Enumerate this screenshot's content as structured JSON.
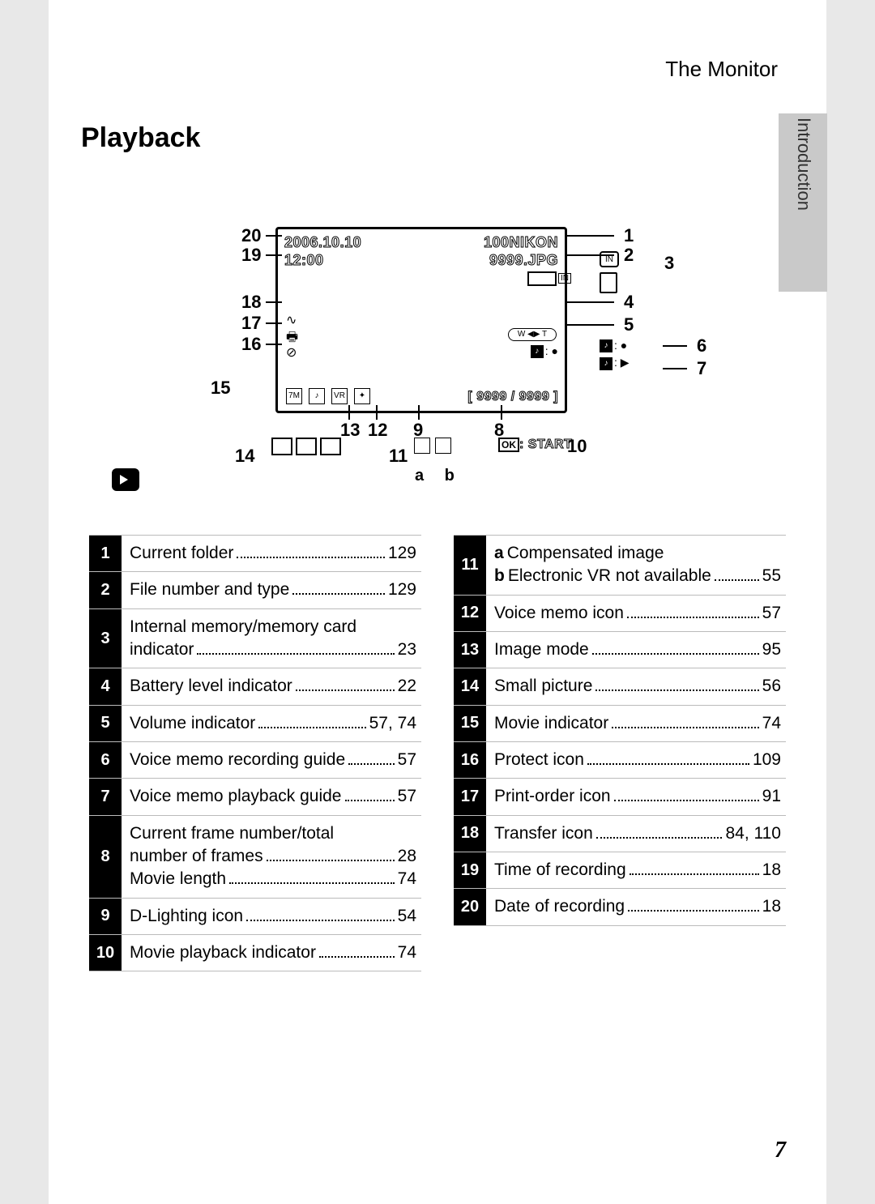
{
  "header": {
    "title": "The Monitor"
  },
  "section": {
    "title": "Playback"
  },
  "side_tab": {
    "label": "Introduction"
  },
  "page_number": "7",
  "screen": {
    "date": "2006.10.10",
    "time": "12:00",
    "folder": "100NIKON",
    "file": "9999.JPG",
    "volume_label": "W ◀▶ T",
    "frame": "[ 9999 / 9999 ]",
    "ok_start": ": START",
    "guide_rec": ": ●",
    "guide_play": ": ▶",
    "ab_label": "a  b"
  },
  "callouts": {
    "n1": "1",
    "n2": "2",
    "n3": "3",
    "n4": "4",
    "n5": "5",
    "n6": "6",
    "n7": "7",
    "n8": "8",
    "n9": "9",
    "n10": "10",
    "n11": "11",
    "n12": "12",
    "n13": "13",
    "n14": "14",
    "n15": "15",
    "n16": "16",
    "n17": "17",
    "n18": "18",
    "n19": "19",
    "n20": "20"
  },
  "legend_left": [
    {
      "num": "1",
      "lines": [
        {
          "label": "Current folder",
          "page": "129"
        }
      ]
    },
    {
      "num": "2",
      "lines": [
        {
          "label": "File number and type",
          "page": "129"
        }
      ]
    },
    {
      "num": "3",
      "lines": [
        {
          "label": "Internal memory/memory card"
        },
        {
          "label": "indicator",
          "page": "23"
        }
      ]
    },
    {
      "num": "4",
      "lines": [
        {
          "label": "Battery level indicator",
          "page": "22"
        }
      ]
    },
    {
      "num": "5",
      "lines": [
        {
          "label": "Volume indicator",
          "page": "57, 74"
        }
      ]
    },
    {
      "num": "6",
      "lines": [
        {
          "label": "Voice memo recording guide",
          "page": "57"
        }
      ]
    },
    {
      "num": "7",
      "lines": [
        {
          "label": "Voice memo playback guide",
          "page": "57"
        }
      ]
    },
    {
      "num": "8",
      "lines": [
        {
          "label": "Current frame number/total"
        },
        {
          "label": "number of frames",
          "page": "28"
        },
        {
          "label": "Movie length",
          "page": "74"
        }
      ]
    },
    {
      "num": "9",
      "lines": [
        {
          "label": "D-Lighting icon",
          "page": "54"
        }
      ]
    },
    {
      "num": "10",
      "lines": [
        {
          "label": "Movie playback indicator",
          "page": "74"
        }
      ]
    }
  ],
  "legend_right": [
    {
      "num": "11",
      "lines": [
        {
          "prefix": "a",
          "label": "Compensated image"
        },
        {
          "prefix": "b",
          "label": "Electronic VR not available",
          "page": "55"
        }
      ]
    },
    {
      "num": "12",
      "lines": [
        {
          "label": "Voice memo icon",
          "page": "57"
        }
      ]
    },
    {
      "num": "13",
      "lines": [
        {
          "label": "Image mode",
          "page": "95"
        }
      ]
    },
    {
      "num": "14",
      "lines": [
        {
          "label": "Small picture",
          "page": "56"
        }
      ]
    },
    {
      "num": "15",
      "lines": [
        {
          "label": "Movie indicator",
          "page": "74"
        }
      ]
    },
    {
      "num": "16",
      "lines": [
        {
          "label": "Protect icon",
          "page": "109"
        }
      ]
    },
    {
      "num": "17",
      "lines": [
        {
          "label": "Print-order icon",
          "page": "91"
        }
      ]
    },
    {
      "num": "18",
      "lines": [
        {
          "label": "Transfer icon",
          "page": "84, 110"
        }
      ]
    },
    {
      "num": "19",
      "lines": [
        {
          "label": "Time of recording",
          "page": "18"
        }
      ]
    },
    {
      "num": "20",
      "lines": [
        {
          "label": "Date of recording",
          "page": "18"
        }
      ]
    }
  ]
}
